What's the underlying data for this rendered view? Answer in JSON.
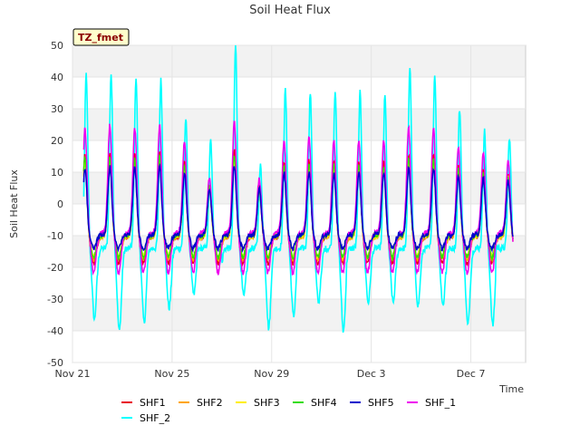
{
  "chart_data": {
    "type": "line",
    "title": "Soil Heat Flux",
    "xlabel": "Time",
    "ylabel": "Soil Heat Flux",
    "badge": "TZ_fmet",
    "ylim": [
      -50,
      50
    ],
    "yticks": [
      -50,
      -40,
      -30,
      -20,
      -10,
      0,
      10,
      20,
      30,
      40,
      50
    ],
    "xlim": [
      0,
      18.2
    ],
    "xticks": [
      {
        "day": 0,
        "label": "Nov 21"
      },
      {
        "day": 4,
        "label": "Nov 25"
      },
      {
        "day": 8,
        "label": "Nov 29"
      },
      {
        "day": 12,
        "label": "Dec 3"
      },
      {
        "day": 16,
        "label": "Dec 7"
      }
    ],
    "x_units": "days since Nov 21 00:00",
    "daily": {
      "day_start": [
        0,
        1,
        2,
        3,
        4,
        5,
        6,
        7,
        8,
        9,
        10,
        11,
        12,
        13,
        14,
        15,
        16,
        17
      ],
      "SHF_2_peak": [
        41,
        41,
        40,
        39,
        27,
        20,
        50,
        12,
        36,
        35,
        36,
        35,
        34,
        43,
        41,
        30,
        23,
        21
      ],
      "SHF_2_trough": [
        -39,
        -43,
        -40,
        -35,
        -30,
        -19,
        -31,
        -42,
        -38,
        -33,
        -43,
        -33,
        -33,
        -34,
        -34,
        -41,
        -41,
        -11
      ],
      "SHF_1_peak": [
        24,
        25,
        24,
        25,
        20,
        8,
        26,
        8,
        20,
        21,
        20,
        20,
        20,
        24,
        24,
        18,
        16,
        14
      ]
    },
    "series": [
      {
        "name": "SHF1",
        "color": "#e8001c",
        "scale": 0.62,
        "offset": -4.5
      },
      {
        "name": "SHF2",
        "color": "#ffa500",
        "scale": 0.55,
        "offset": -5.0
      },
      {
        "name": "SHF3",
        "color": "#ffee00",
        "scale": 0.52,
        "offset": -4.0
      },
      {
        "name": "SHF4",
        "color": "#33dd00",
        "scale": 0.55,
        "offset": -3.0
      },
      {
        "name": "SHF5",
        "color": "#0000cc",
        "scale": 0.42,
        "offset": -2.5
      },
      {
        "name": "SHF_1",
        "color": "#ee00ee",
        "scale": 1.0,
        "offset": 0
      },
      {
        "name": "SHF_2",
        "color": "#00ffff",
        "scale": 1.0,
        "offset": 0
      }
    ]
  }
}
